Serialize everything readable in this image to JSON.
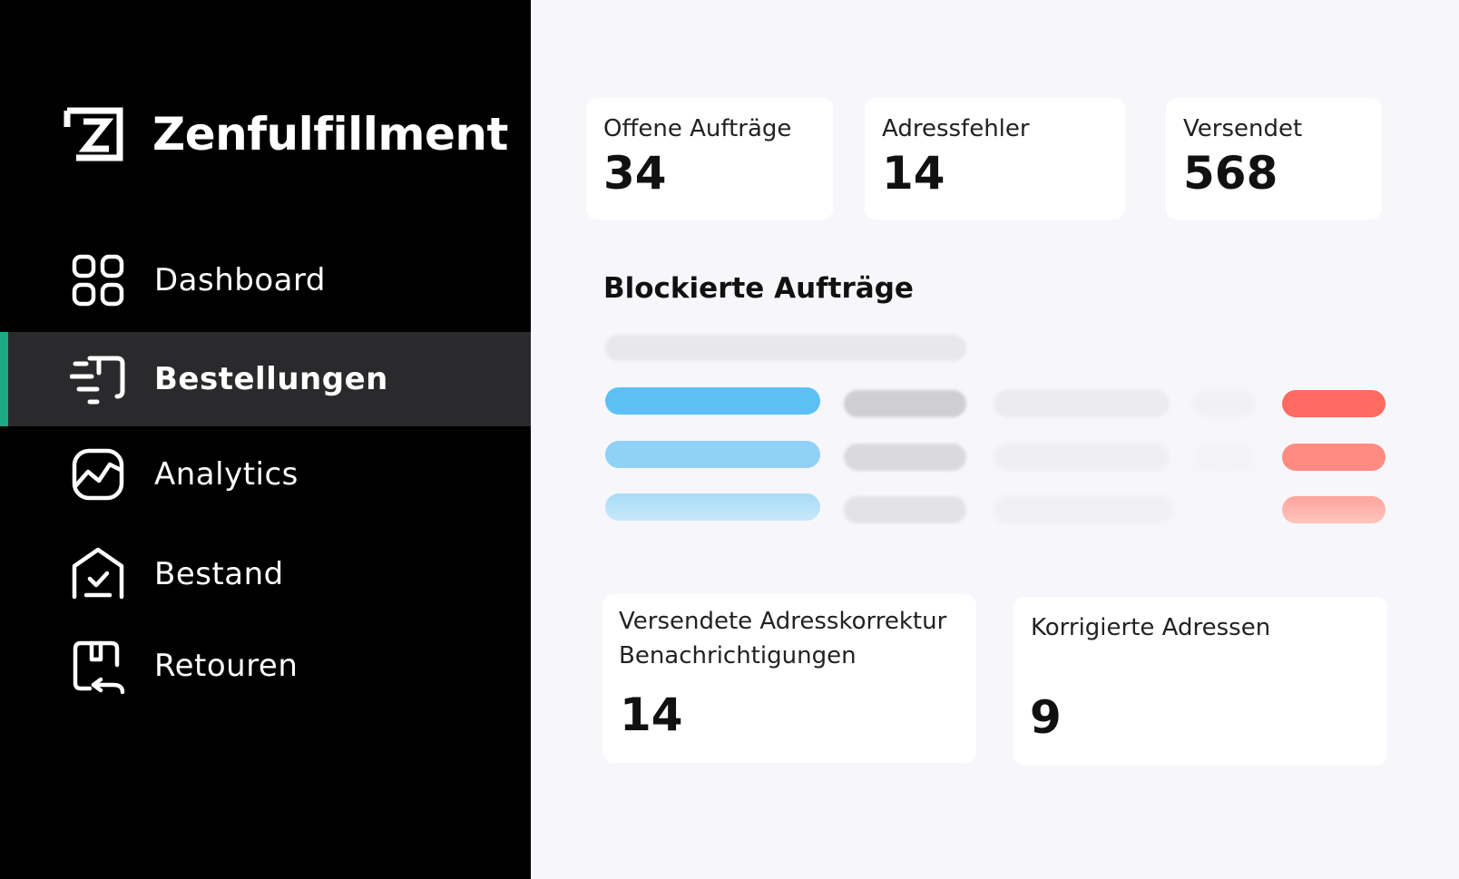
{
  "app": {
    "name": "Zenfulfillment",
    "logo_icon": "zenfulfillment-logo-icon"
  },
  "sidebar": {
    "accent_color": "#1ea884",
    "items": [
      {
        "label": "Dashboard",
        "icon": "dashboard-grid-icon",
        "active": false
      },
      {
        "label": "Bestellungen",
        "icon": "orders-icon",
        "active": true
      },
      {
        "label": "Analytics",
        "icon": "analytics-chart-icon",
        "active": false
      },
      {
        "label": "Bestand",
        "icon": "inventory-house-icon",
        "active": false
      },
      {
        "label": "Retouren",
        "icon": "returns-icon",
        "active": false
      }
    ]
  },
  "stats": [
    {
      "label": "Offene Aufträge",
      "value": "34"
    },
    {
      "label": "Adressfehler",
      "value": "14"
    },
    {
      "label": "Versendet",
      "value": "568"
    }
  ],
  "blocked_orders": {
    "title": "Blockierte Aufträge",
    "status_colors": {
      "blue": "#5cc0f5",
      "red": "#ff6b60"
    }
  },
  "bottom_stats": [
    {
      "label_line1": "Versendete Adresskorrektur",
      "label_line2": "Benachrichtigungen",
      "value": "14"
    },
    {
      "label": "Korrigierte Adressen",
      "value": "9"
    }
  ]
}
